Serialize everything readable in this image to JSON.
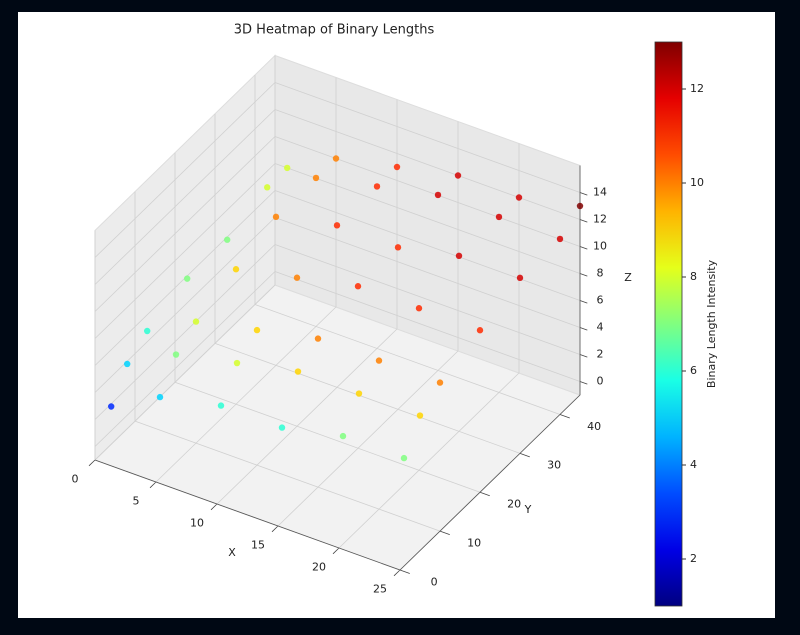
{
  "chart_data": {
    "type": "scatter3d",
    "title": "3D Heatmap of Binary Lengths",
    "xlabel": "X",
    "ylabel": "Y",
    "zlabel": "Z",
    "colorbar_label": "Binary Length Intensity",
    "colormap": "jet",
    "x": [
      1,
      1,
      1,
      1,
      1,
      1,
      1,
      5,
      5,
      5,
      5,
      5,
      5,
      5,
      10,
      10,
      10,
      10,
      10,
      10,
      10,
      15,
      15,
      15,
      15,
      15,
      15,
      15,
      20,
      20,
      20,
      20,
      20,
      20,
      20,
      25,
      25,
      25,
      25,
      25,
      25,
      25
    ],
    "y": [
      1,
      5,
      10,
      20,
      30,
      40,
      45,
      1,
      5,
      10,
      20,
      30,
      40,
      45,
      1,
      5,
      10,
      20,
      30,
      40,
      45,
      1,
      5,
      10,
      20,
      30,
      40,
      45,
      1,
      5,
      10,
      20,
      30,
      40,
      45,
      1,
      5,
      10,
      20,
      30,
      40,
      45
    ],
    "z": [
      3,
      5,
      6,
      7,
      7,
      8,
      8,
      5,
      7,
      8,
      9,
      10,
      10,
      10,
      6,
      8,
      9,
      10,
      11,
      11,
      11,
      6,
      9,
      10,
      11,
      11,
      12,
      12,
      7,
      9,
      10,
      11,
      12,
      12,
      12,
      7,
      9,
      10,
      11,
      12,
      12,
      13
    ],
    "xlim": [
      0,
      25
    ],
    "ylim": [
      0,
      45
    ],
    "zlim": [
      -1,
      16
    ],
    "clim": [
      1,
      13
    ],
    "xticks": [
      0,
      5,
      10,
      15,
      20,
      25
    ],
    "yticks": [
      0,
      10,
      20,
      30,
      40
    ],
    "zticks": [
      0,
      2,
      4,
      6,
      8,
      10,
      12,
      14
    ],
    "cticks": [
      2,
      4,
      6,
      8,
      10,
      12
    ],
    "grid": true
  }
}
